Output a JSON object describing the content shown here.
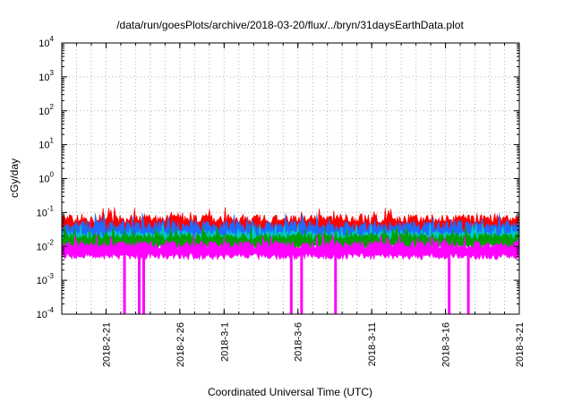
{
  "chart_data": {
    "type": "area",
    "title": "/data/run/goesPlots/archive/2018-03-20/flux/../bryn/31daysEarthData.plot",
    "xlabel": "Coordinated Universal Time (UTC)",
    "ylabel": "cGy/day",
    "y_scale": "log",
    "ylim": [
      0.0001,
      10000
    ],
    "xlim": [
      "2018-02-18",
      "2018-03-21"
    ],
    "grid": true,
    "legend": "none",
    "x_ticks": [
      "2018-2-21",
      "2018-2-26",
      "2018-3-1",
      "2018-3-6",
      "2018-3-11",
      "2018-3-16",
      "2018-3-21"
    ],
    "y_ticks": [
      {
        "value": 0.0001,
        "base": "10",
        "exp": "-4"
      },
      {
        "value": 0.001,
        "base": "10",
        "exp": "-3"
      },
      {
        "value": 0.01,
        "base": "10",
        "exp": "-2"
      },
      {
        "value": 0.1,
        "base": "10",
        "exp": "-1"
      },
      {
        "value": 1,
        "base": "10",
        "exp": "0"
      },
      {
        "value": 10,
        "base": "10",
        "exp": "1"
      },
      {
        "value": 100,
        "base": "10",
        "exp": "2"
      },
      {
        "value": 1000,
        "base": "10",
        "exp": "3"
      },
      {
        "value": 10000,
        "base": "10",
        "exp": "4"
      }
    ],
    "series": [
      {
        "color": "#ff0000",
        "typical_range": [
          0.02,
          0.09
        ]
      },
      {
        "color": "#1e6bff",
        "typical_range": [
          0.01,
          0.06
        ]
      },
      {
        "color": "#00c8c8",
        "typical_range": [
          0.01,
          0.03
        ]
      },
      {
        "color": "#00a000",
        "typical_range": [
          0.008,
          0.025
        ]
      },
      {
        "color": "#ff00ff",
        "typical_range": [
          0.004,
          0.015
        ]
      }
    ],
    "dropouts": [
      {
        "series_color": "#ff00ff",
        "dates": [
          "2018-02-22",
          "2018-02-23",
          "2018-02-23",
          "2018-03-05",
          "2018-03-06",
          "2018-03-08",
          "2018-03-16",
          "2018-03-17"
        ]
      }
    ]
  }
}
